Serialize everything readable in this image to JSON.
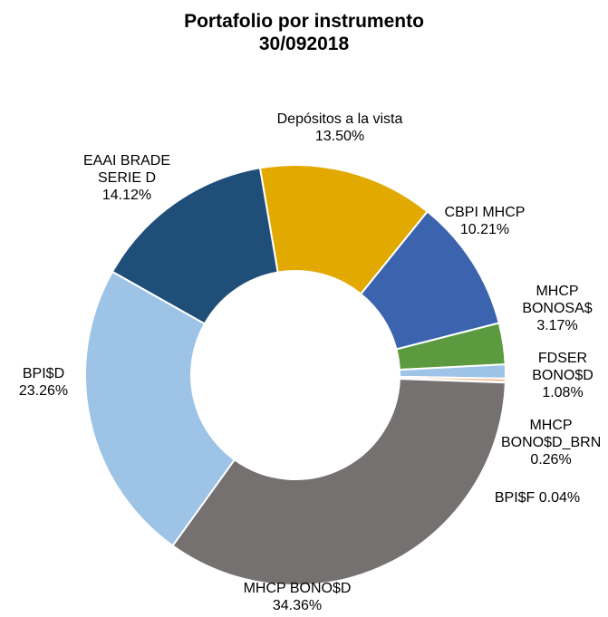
{
  "chart_data": {
    "type": "donut",
    "title": "Portafolio por instrumento",
    "subtitle": "30/092018",
    "categories": [
      "Depósitos a la vista",
      "CBPI MHCP",
      "MHCP BONOSA$",
      "FDSER BONO$D",
      "MHCP BONO$D_BRN",
      "BPI$F",
      "MHCP BONO$D",
      "BPI$D",
      "EAAI BRADE SERIE D"
    ],
    "values": [
      13.5,
      10.21,
      3.17,
      1.08,
      0.26,
      0.04,
      34.36,
      23.26,
      14.12
    ],
    "value_labels": [
      "13.50%",
      "10.21%",
      "3.17%",
      "1.08%",
      "0.26%",
      "0.04%",
      "34.36%",
      "23.26%",
      "14.12%"
    ],
    "colors": [
      "#e2aa00",
      "#3c64ae",
      "#5b9a3e",
      "#9dc3e6",
      "#f4b183",
      "#a5a5a5",
      "#767171",
      "#9dc3e6",
      "#1f4e79"
    ]
  }
}
